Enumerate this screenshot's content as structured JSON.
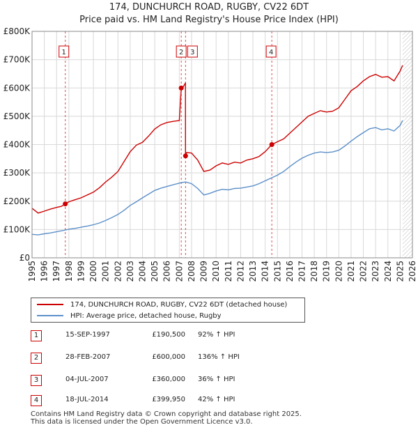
{
  "header": {
    "title": "174, DUNCHURCH ROAD, RUGBY, CV22 6DT",
    "subtitle": "Price paid vs. HM Land Registry's House Price Index (HPI)"
  },
  "colors": {
    "property": "#cc0000",
    "hpi": "#5b8fc9",
    "grid": "#d8d8d8",
    "marker": "#cc0000"
  },
  "chart_data": {
    "type": "line",
    "title": "174, DUNCHURCH ROAD, RUGBY, CV22 6DT",
    "subtitle": "Price paid vs. HM Land Registry's House Price Index (HPI)",
    "xlabel": "",
    "ylabel": "",
    "xlim": [
      1995,
      2026
    ],
    "ylim": [
      0,
      800000
    ],
    "x_ticks": [
      "1995",
      "1996",
      "1997",
      "1998",
      "1999",
      "2000",
      "2001",
      "2002",
      "2003",
      "2004",
      "2005",
      "2006",
      "2007",
      "2008",
      "2009",
      "2010",
      "2011",
      "2012",
      "2013",
      "2014",
      "2015",
      "2016",
      "2017",
      "2018",
      "2019",
      "2020",
      "2021",
      "2022",
      "2023",
      "2024",
      "2025",
      "2026"
    ],
    "y_ticks": [
      {
        "value": 0,
        "label": "£0"
      },
      {
        "value": 100000,
        "label": "£100K"
      },
      {
        "value": 200000,
        "label": "£200K"
      },
      {
        "value": 300000,
        "label": "£300K"
      },
      {
        "value": 400000,
        "label": "£400K"
      },
      {
        "value": 500000,
        "label": "£500K"
      },
      {
        "value": 600000,
        "label": "£600K"
      },
      {
        "value": 700000,
        "label": "£700K"
      },
      {
        "value": 800000,
        "label": "£800K"
      }
    ],
    "grid": true,
    "forecast_from": 2025.2,
    "series": [
      {
        "name": "174, DUNCHURCH ROAD, RUGBY, CV22 6DT (detached house)",
        "x": [
          1995.0,
          1995.5,
          1996.0,
          1996.5,
          1997.0,
          1997.4,
          1997.71,
          1998.0,
          1998.5,
          1999.0,
          1999.5,
          2000.0,
          2000.5,
          2001.0,
          2001.5,
          2002.0,
          2002.5,
          2003.0,
          2003.5,
          2004.0,
          2004.5,
          2005.0,
          2005.5,
          2006.0,
          2006.5,
          2007.0,
          2007.16,
          2007.2,
          2007.4,
          2007.5,
          2007.51,
          2007.6,
          2008.0,
          2008.5,
          2009.0,
          2009.5,
          2010.0,
          2010.5,
          2011.0,
          2011.5,
          2012.0,
          2012.5,
          2013.0,
          2013.5,
          2014.0,
          2014.54,
          2015.0,
          2015.5,
          2016.0,
          2016.5,
          2017.0,
          2017.5,
          2018.0,
          2018.5,
          2019.0,
          2019.5,
          2020.0,
          2020.5,
          2021.0,
          2021.5,
          2022.0,
          2022.5,
          2023.0,
          2023.5,
          2024.0,
          2024.5,
          2025.0,
          2025.2
        ],
        "values": [
          175000,
          158000,
          165000,
          172000,
          178000,
          182000,
          190500,
          198000,
          205000,
          212000,
          222000,
          232000,
          248000,
          268000,
          285000,
          305000,
          340000,
          375000,
          398000,
          408000,
          430000,
          455000,
          470000,
          478000,
          482000,
          485000,
          600000,
          595000,
          610000,
          618000,
          360000,
          372000,
          370000,
          345000,
          305000,
          310000,
          325000,
          335000,
          330000,
          338000,
          335000,
          345000,
          350000,
          358000,
          375000,
          399950,
          410000,
          420000,
          440000,
          460000,
          480000,
          500000,
          510000,
          520000,
          515000,
          518000,
          530000,
          560000,
          590000,
          605000,
          625000,
          640000,
          648000,
          638000,
          640000,
          625000,
          660000,
          680000
        ]
      },
      {
        "name": "HPI: Average price, detached house, Rugby",
        "x": [
          1995.0,
          1995.5,
          1996.0,
          1996.5,
          1997.0,
          1997.5,
          1998.0,
          1998.5,
          1999.0,
          1999.5,
          2000.0,
          2000.5,
          2001.0,
          2001.5,
          2002.0,
          2002.5,
          2003.0,
          2003.5,
          2004.0,
          2004.5,
          2005.0,
          2005.5,
          2006.0,
          2006.5,
          2007.0,
          2007.5,
          2008.0,
          2008.5,
          2009.0,
          2009.5,
          2010.0,
          2010.5,
          2011.0,
          2011.5,
          2012.0,
          2012.5,
          2013.0,
          2013.5,
          2014.0,
          2014.5,
          2015.0,
          2015.5,
          2016.0,
          2016.5,
          2017.0,
          2017.5,
          2018.0,
          2018.5,
          2019.0,
          2019.5,
          2020.0,
          2020.5,
          2021.0,
          2021.5,
          2022.0,
          2022.5,
          2023.0,
          2023.5,
          2024.0,
          2024.5,
          2025.0,
          2025.2
        ],
        "values": [
          83000,
          81000,
          85000,
          88000,
          92000,
          96000,
          101000,
          104000,
          108000,
          112000,
          117000,
          123000,
          132000,
          142000,
          153000,
          168000,
          185000,
          198000,
          212000,
          225000,
          238000,
          246000,
          252000,
          258000,
          264000,
          268000,
          262000,
          245000,
          222000,
          228000,
          236000,
          242000,
          240000,
          245000,
          246000,
          250000,
          254000,
          262000,
          272000,
          282000,
          292000,
          305000,
          322000,
          338000,
          352000,
          362000,
          370000,
          374000,
          372000,
          374000,
          380000,
          395000,
          412000,
          428000,
          442000,
          456000,
          460000,
          452000,
          456000,
          448000,
          468000,
          485000
        ]
      }
    ],
    "transactions": [
      {
        "num": "1",
        "x": 1997.71,
        "value": 190500
      },
      {
        "num": "2",
        "x": 2007.16,
        "value": 600000
      },
      {
        "num": "3",
        "x": 2007.51,
        "value": 360000
      },
      {
        "num": "4",
        "x": 2014.54,
        "value": 399950
      }
    ]
  },
  "legend": {
    "property": "174, DUNCHURCH ROAD, RUGBY, CV22 6DT (detached house)",
    "hpi": "HPI: Average price, detached house, Rugby"
  },
  "table": [
    {
      "num": "1",
      "date": "15-SEP-1997",
      "price": "£190,500",
      "hpi": "92% ↑ HPI"
    },
    {
      "num": "2",
      "date": "28-FEB-2007",
      "price": "£600,000",
      "hpi": "136% ↑ HPI"
    },
    {
      "num": "3",
      "date": "04-JUL-2007",
      "price": "£360,000",
      "hpi": "36% ↑ HPI"
    },
    {
      "num": "4",
      "date": "18-JUL-2014",
      "price": "£399,950",
      "hpi": "42% ↑ HPI"
    }
  ],
  "footer": {
    "line1": "Contains HM Land Registry data © Crown copyright and database right 2025.",
    "line2": "This data is licensed under the Open Government Licence v3.0."
  }
}
